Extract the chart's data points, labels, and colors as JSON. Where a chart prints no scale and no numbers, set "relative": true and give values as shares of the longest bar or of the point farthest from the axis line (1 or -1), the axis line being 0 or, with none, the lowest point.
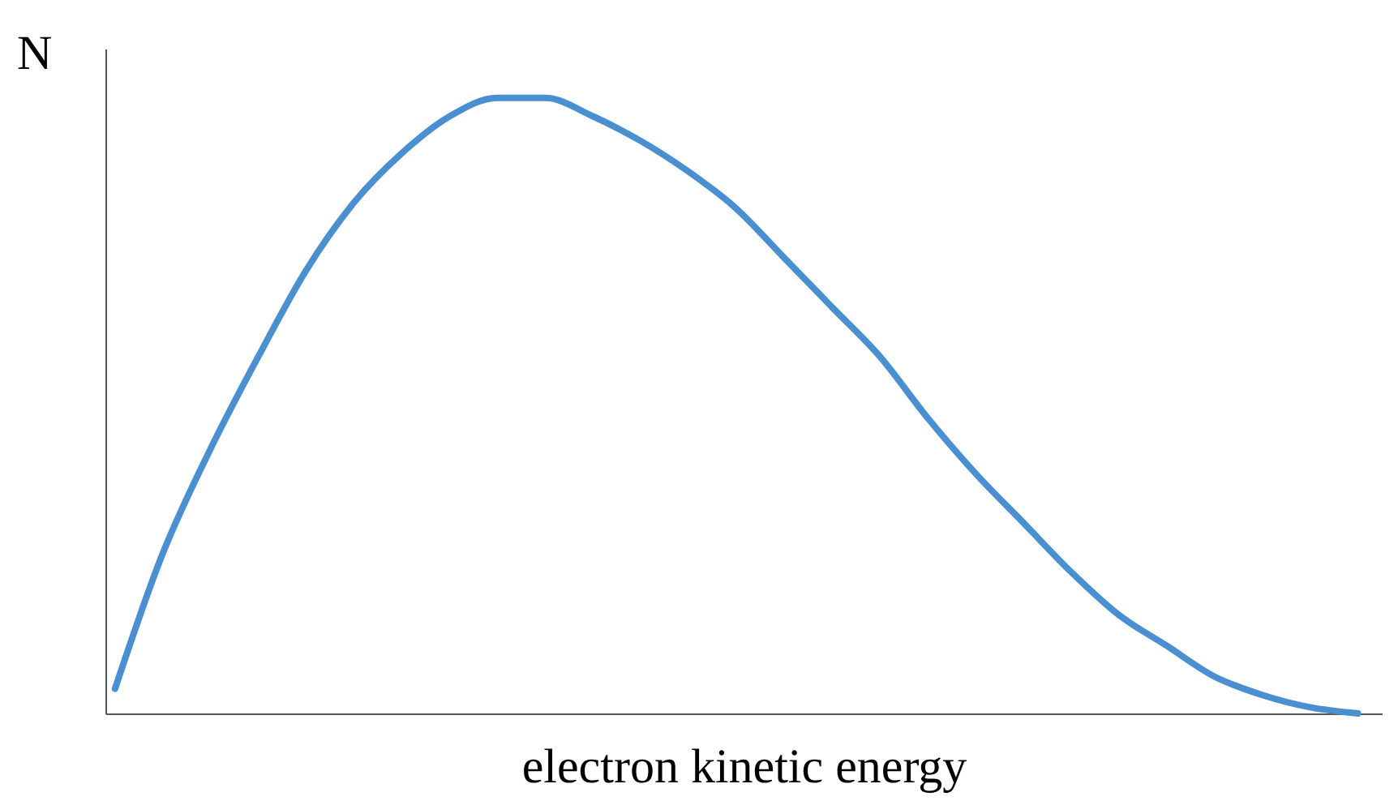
{
  "chart_data": {
    "type": "line",
    "relative": true,
    "xlabel": "electron kinetic energy",
    "ylabel": "N",
    "grid": false,
    "marker": "none",
    "line_style": "solid",
    "tick_labels": false,
    "categories": [
      null,
      null,
      null,
      null,
      null,
      null,
      null,
      null,
      null,
      null,
      null,
      null,
      null,
      null,
      null,
      null,
      null,
      null,
      null,
      null,
      null,
      null,
      null,
      null,
      null,
      null,
      null
    ],
    "series": [
      {
        "color": "#4a8fd0",
        "values": [
          0.04,
          0.26,
          0.43,
          0.58,
          0.72,
          0.83,
          0.91,
          0.97,
          1.0,
          1.0,
          0.97,
          0.93,
          0.88,
          0.82,
          0.74,
          0.66,
          0.58,
          0.48,
          0.39,
          0.31,
          0.23,
          0.16,
          0.11,
          0.06,
          0.03,
          0.01,
          0.0
        ]
      }
    ]
  }
}
